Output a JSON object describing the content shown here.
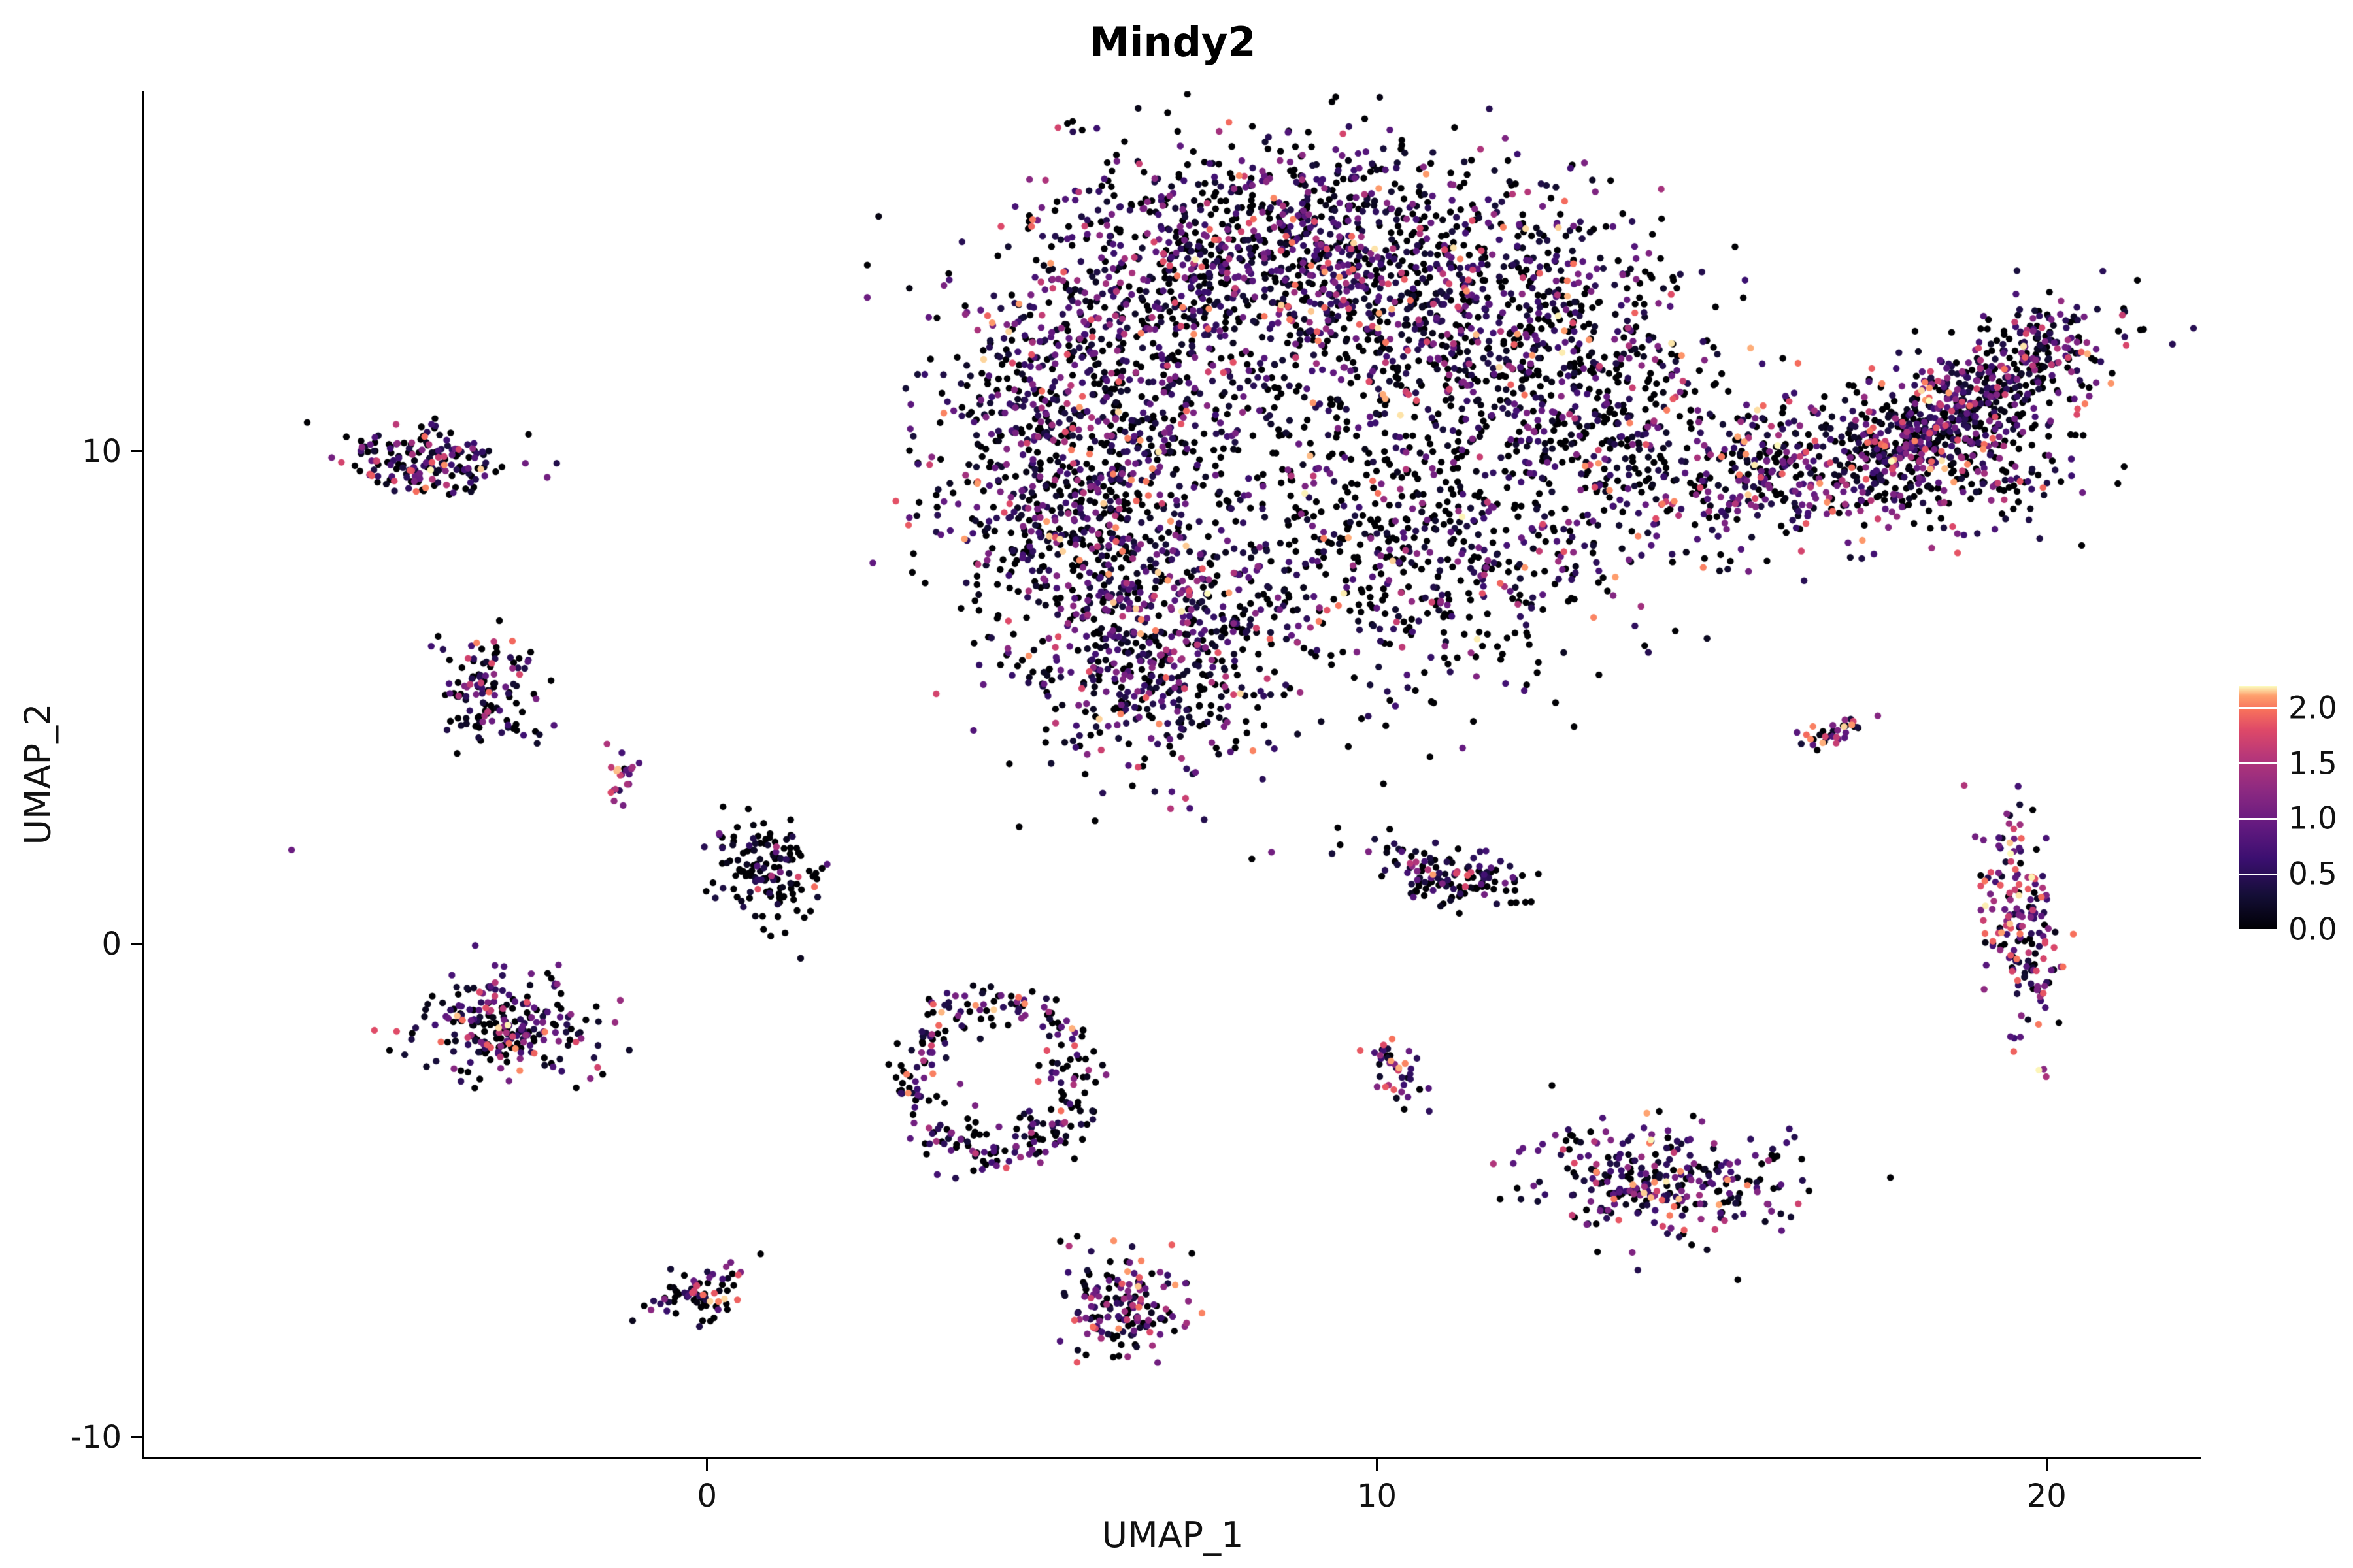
{
  "title": "Mindy2",
  "chart_data": {
    "type": "scatter",
    "title": "Mindy2",
    "subtitle": "",
    "xlabel": "UMAP_1",
    "ylabel": "UMAP_2",
    "xlim": [
      -8.4,
      22.3
    ],
    "ylim": [
      -10.4,
      17.3
    ],
    "xticks": [
      0,
      10,
      20
    ],
    "xtick_labels": [
      "0",
      "10",
      "20"
    ],
    "yticks": [
      10,
      0,
      -10
    ],
    "ytick_labels": [
      "10",
      "0",
      "-10"
    ],
    "grid": "off",
    "point_radius": 5.2,
    "seed": 42,
    "legend": {
      "position": "right",
      "vmin": 0.0,
      "vmax": 2.2,
      "tick_values": [
        2.0,
        1.5,
        1.0,
        0.5,
        0.0
      ],
      "tick_labels": [
        "2.0",
        "1.5",
        "1.0",
        "0.5",
        "0.0"
      ]
    },
    "colormap": {
      "name": "magma",
      "stops": [
        {
          "t": 0.0,
          "c": "#000004"
        },
        {
          "t": 0.14,
          "c": "#140e36"
        },
        {
          "t": 0.29,
          "c": "#3b0f70"
        },
        {
          "t": 0.43,
          "c": "#641a80"
        },
        {
          "t": 0.57,
          "c": "#8c2981"
        },
        {
          "t": 0.71,
          "c": "#b73779"
        },
        {
          "t": 0.82,
          "c": "#de4968"
        },
        {
          "t": 0.9,
          "c": "#f7705c"
        },
        {
          "t": 0.96,
          "c": "#fe9f6d"
        },
        {
          "t": 1.0,
          "c": "#fcfdbf"
        }
      ]
    },
    "value_bands": [
      {
        "lo": 0.0,
        "hi": 0.0
      },
      {
        "lo": 0.08,
        "hi": 0.55
      },
      {
        "lo": 0.55,
        "hi": 1.25
      },
      {
        "lo": 1.25,
        "hi": 2.2
      }
    ],
    "clusters": [
      {
        "name": "main-left-arc",
        "shape": "blob",
        "cx": 6.2,
        "cy": 12.3,
        "sx": 1.3,
        "sy": 1.9,
        "rot": -20,
        "n": 750,
        "expr": [
          0.36,
          0.3,
          0.24,
          0.1
        ]
      },
      {
        "name": "main-top",
        "shape": "blob",
        "cx": 9.0,
        "cy": 14.2,
        "sx": 1.7,
        "sy": 1.0,
        "rot": 5,
        "n": 800,
        "expr": [
          0.36,
          0.28,
          0.25,
          0.11
        ]
      },
      {
        "name": "main-left-lower",
        "shape": "blob",
        "cx": 5.6,
        "cy": 8.6,
        "sx": 1.0,
        "sy": 1.6,
        "rot": 10,
        "n": 620,
        "expr": [
          0.38,
          0.3,
          0.22,
          0.1
        ]
      },
      {
        "name": "main-bottom-tail",
        "shape": "blob",
        "cx": 6.9,
        "cy": 5.9,
        "sx": 1.05,
        "sy": 1.2,
        "rot": -15,
        "n": 520,
        "expr": [
          0.36,
          0.3,
          0.24,
          0.1
        ]
      },
      {
        "name": "main-right-upper",
        "shape": "blob",
        "cx": 11.6,
        "cy": 12.6,
        "sx": 1.6,
        "sy": 1.15,
        "rot": 10,
        "n": 620,
        "expr": [
          0.4,
          0.28,
          0.22,
          0.1
        ]
      },
      {
        "name": "main-right-mid",
        "shape": "blob",
        "cx": 10.8,
        "cy": 7.7,
        "sx": 1.35,
        "sy": 1.3,
        "rot": 0,
        "n": 430,
        "expr": [
          0.55,
          0.24,
          0.15,
          0.06
        ]
      },
      {
        "name": "main-right-lobe",
        "shape": "blob",
        "cx": 13.4,
        "cy": 10.2,
        "sx": 1.0,
        "sy": 1.35,
        "rot": 0,
        "n": 420,
        "expr": [
          0.42,
          0.28,
          0.2,
          0.1
        ]
      },
      {
        "name": "main-center-sparse",
        "shape": "blob",
        "cx": 9.4,
        "cy": 10.0,
        "sx": 1.6,
        "sy": 1.4,
        "rot": 0,
        "n": 230,
        "expr": [
          0.62,
          0.2,
          0.12,
          0.06
        ]
      },
      {
        "name": "neck",
        "shape": "blob",
        "cx": 15.7,
        "cy": 9.7,
        "sx": 0.55,
        "sy": 0.75,
        "rot": -30,
        "n": 160,
        "expr": [
          0.32,
          0.3,
          0.25,
          0.13
        ]
      },
      {
        "name": "right-wing",
        "shape": "blob",
        "cx": 18.2,
        "cy": 10.5,
        "sx": 1.5,
        "sy": 0.55,
        "rot": 40,
        "n": 620,
        "expr": [
          0.3,
          0.28,
          0.27,
          0.15
        ]
      },
      {
        "name": "right-wing-fill",
        "shape": "blob",
        "cx": 18.6,
        "cy": 9.8,
        "sx": 0.9,
        "sy": 0.8,
        "rot": 20,
        "n": 260,
        "expr": [
          0.34,
          0.28,
          0.24,
          0.14
        ]
      },
      {
        "name": "right-wing-tip",
        "shape": "blob",
        "cx": 19.8,
        "cy": 12.0,
        "sx": 0.45,
        "sy": 0.45,
        "rot": 30,
        "n": 110,
        "expr": [
          0.3,
          0.3,
          0.25,
          0.15
        ]
      },
      {
        "name": "sat-topleft",
        "shape": "blob",
        "cx": -4.2,
        "cy": 9.8,
        "sx": 0.6,
        "sy": 0.35,
        "rot": -10,
        "n": 170,
        "expr": [
          0.3,
          0.3,
          0.25,
          0.15
        ]
      },
      {
        "name": "sat-left-upper",
        "shape": "blob",
        "cx": -3.3,
        "cy": 5.2,
        "sx": 0.35,
        "sy": 0.55,
        "rot": 20,
        "n": 120,
        "expr": [
          0.45,
          0.3,
          0.17,
          0.08
        ]
      },
      {
        "name": "sat-tiny",
        "shape": "blob",
        "cx": -1.25,
        "cy": 3.35,
        "sx": 0.12,
        "sy": 0.28,
        "rot": 0,
        "n": 22,
        "expr": [
          0.1,
          0.2,
          0.3,
          0.4
        ]
      },
      {
        "name": "sat-single",
        "shape": "blob",
        "cx": -6.2,
        "cy": 1.9,
        "sx": 0.02,
        "sy": 0.02,
        "rot": 0,
        "n": 1,
        "expr": [
          0.0,
          0.5,
          0.5,
          0.0
        ]
      },
      {
        "name": "sat-center-dark",
        "shape": "blob",
        "cx": 0.9,
        "cy": 1.5,
        "sx": 0.38,
        "sy": 0.5,
        "rot": 15,
        "n": 140,
        "expr": [
          0.6,
          0.26,
          0.1,
          0.04
        ]
      },
      {
        "name": "sat-left-mid",
        "shape": "blob",
        "cx": -3.0,
        "cy": -1.7,
        "sx": 0.65,
        "sy": 0.5,
        "rot": -15,
        "n": 240,
        "expr": [
          0.32,
          0.27,
          0.24,
          0.17
        ]
      },
      {
        "name": "ring-cluster",
        "shape": "ring",
        "cx": 4.3,
        "cy": -2.7,
        "rx": 1.25,
        "ry": 1.5,
        "thick": 0.3,
        "n": 270,
        "expr": [
          0.42,
          0.26,
          0.2,
          0.12
        ]
      },
      {
        "name": "sat-right-band",
        "shape": "blob",
        "cx": 11.2,
        "cy": 1.4,
        "sx": 0.65,
        "sy": 0.3,
        "rot": -18,
        "n": 130,
        "expr": [
          0.45,
          0.28,
          0.17,
          0.1
        ]
      },
      {
        "name": "sat-small-diag",
        "shape": "blob",
        "cx": 10.3,
        "cy": -2.6,
        "sx": 0.2,
        "sy": 0.35,
        "rot": 30,
        "n": 40,
        "expr": [
          0.1,
          0.2,
          0.35,
          0.35
        ]
      },
      {
        "name": "sat-lower-right",
        "shape": "blob",
        "cx": 14.3,
        "cy": -4.8,
        "sx": 0.95,
        "sy": 0.55,
        "rot": -10,
        "n": 300,
        "expr": [
          0.32,
          0.28,
          0.25,
          0.15
        ]
      },
      {
        "name": "sat-bottom-small",
        "shape": "blob",
        "cx": -0.1,
        "cy": -7.0,
        "sx": 0.4,
        "sy": 0.25,
        "rot": 25,
        "n": 75,
        "expr": [
          0.35,
          0.27,
          0.2,
          0.18
        ]
      },
      {
        "name": "sat-bottom-mid",
        "shape": "blob",
        "cx": 6.2,
        "cy": -7.3,
        "sx": 0.5,
        "sy": 0.5,
        "rot": 0,
        "n": 160,
        "expr": [
          0.33,
          0.25,
          0.24,
          0.18
        ]
      },
      {
        "name": "sat-right-tiny",
        "shape": "blob",
        "cx": 16.8,
        "cy": 4.3,
        "sx": 0.3,
        "sy": 0.12,
        "rot": 20,
        "n": 35,
        "expr": [
          0.2,
          0.2,
          0.3,
          0.3
        ]
      },
      {
        "name": "sat-right-strip",
        "shape": "blob",
        "cx": 19.6,
        "cy": 0.4,
        "sx": 0.28,
        "sy": 1.2,
        "rot": 5,
        "n": 180,
        "expr": [
          0.15,
          0.2,
          0.3,
          0.35
        ]
      }
    ]
  }
}
